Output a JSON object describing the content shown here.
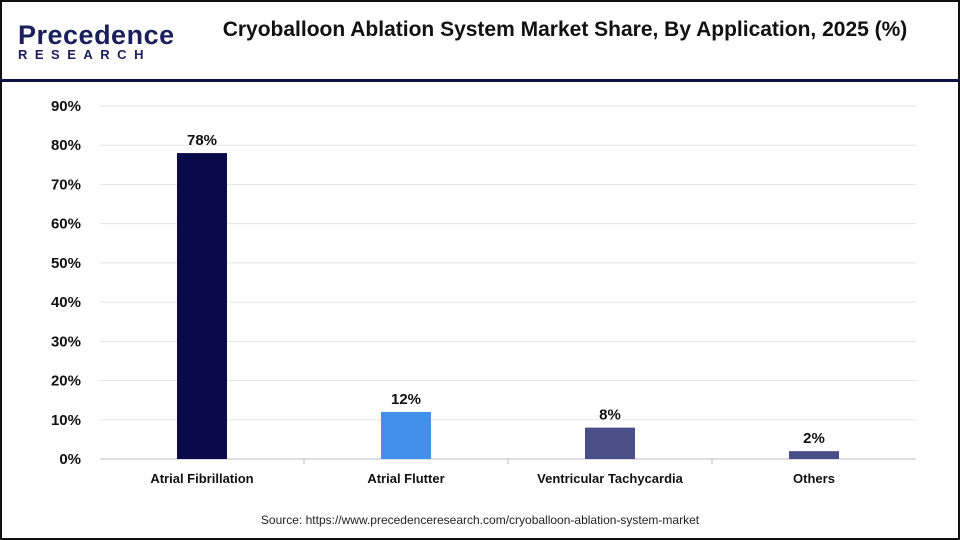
{
  "logo": {
    "line1": "Precedence",
    "line2": "RESEARCH"
  },
  "title": "Cryoballoon Ablation System Market Share, By Application, 2025 (%)",
  "source": "Source: https://www.precedenceresearch.com/cryoballoon-ablation-system-market",
  "chart_data": {
    "type": "bar",
    "title": "Cryoballoon Ablation System Market Share, By Application, 2025 (%)",
    "categories": [
      "Atrial Fibrillation",
      "Atrial Flutter",
      "Ventricular Tachycardia",
      "Others"
    ],
    "values": [
      78,
      12,
      8,
      2
    ],
    "data_labels": [
      "78%",
      "12%",
      "8%",
      "2%"
    ],
    "colors": [
      "#0a0a4a",
      "#4191ec",
      "#4a4f8a",
      "#4a4f8a"
    ],
    "ylim": [
      0,
      90
    ],
    "yticks": [
      "0%",
      "10%",
      "20%",
      "30%",
      "40%",
      "50%",
      "60%",
      "70%",
      "80%",
      "90%"
    ],
    "grid": true,
    "xlabel": "",
    "ylabel": ""
  }
}
